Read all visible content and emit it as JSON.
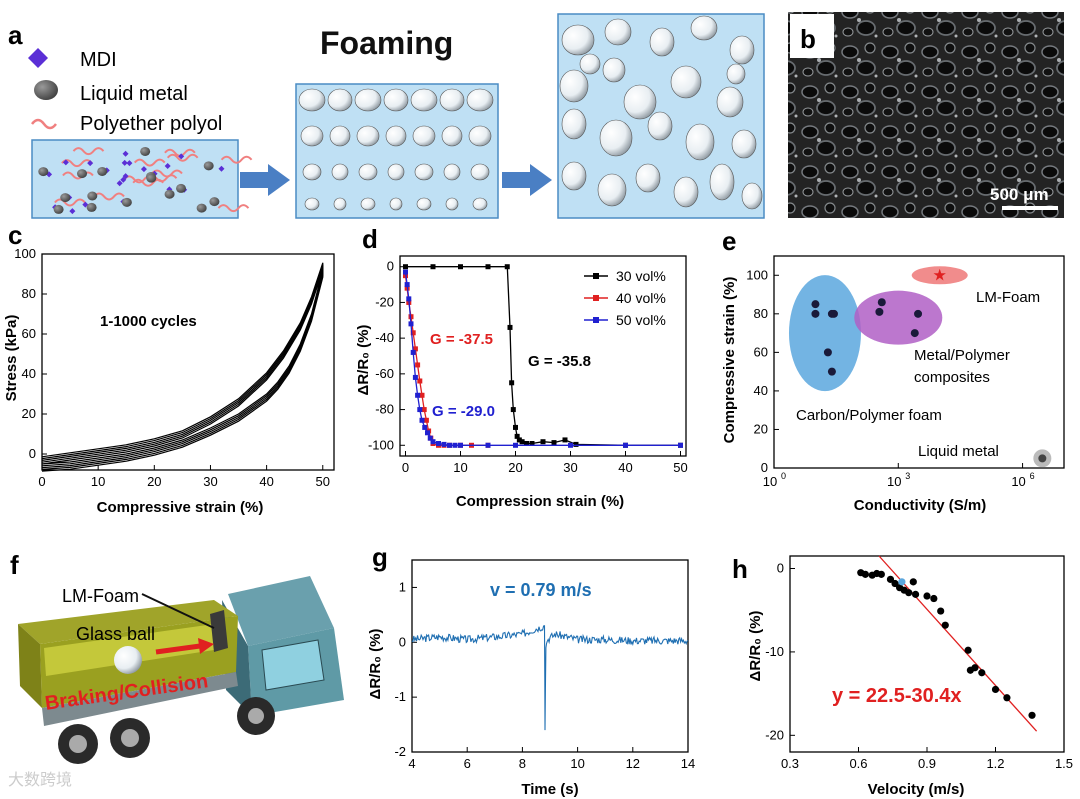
{
  "panel_letters": {
    "a": "a",
    "b": "b",
    "c": "c",
    "d": "d",
    "e": "e",
    "f": "f",
    "g": "g",
    "h": "h"
  },
  "panel_a": {
    "title": "Foaming",
    "legend": [
      {
        "label": "MDI",
        "icon": "diamond-icon",
        "color": "#5b2fd6"
      },
      {
        "label": "Liquid metal",
        "icon": "gray-dot-icon",
        "color": "#555555"
      },
      {
        "label": "Polyether polyol",
        "icon": "wave-icon",
        "color": "#f08080"
      }
    ]
  },
  "panel_b": {
    "scale_bar": "500 μm"
  },
  "panel_f": {
    "lm_foam": "LM-Foam",
    "glass_ball": "Glass ball",
    "event": "Braking/Collision"
  },
  "watermark": "大数跨境",
  "chart_data": [
    {
      "panel": "c",
      "type": "line",
      "xlabel": "Compressive strain (%)",
      "ylabel": "Stress (kPa)",
      "xlim": [
        0,
        52
      ],
      "ylim": [
        -8,
        100
      ],
      "xticks": [
        "0",
        "10",
        "20",
        "30",
        "40",
        "50"
      ],
      "yticks": [
        "0",
        "20",
        "40",
        "60",
        "80",
        "100"
      ],
      "annotation": "1-1000 cycles",
      "series": [
        {
          "x": [
            0,
            5,
            10,
            15,
            20,
            25,
            30,
            35,
            40,
            43,
            46,
            48,
            50,
            50,
            48,
            46,
            44,
            42,
            40,
            35,
            30,
            25,
            20,
            15,
            10,
            5,
            0
          ],
          "y": [
            -5,
            -3,
            -1,
            1,
            4,
            8,
            15,
            24,
            37,
            48,
            62,
            75,
            92,
            92,
            70,
            55,
            44,
            36,
            30,
            20,
            13,
            7,
            3,
            0,
            -2,
            -4,
            -5
          ]
        }
      ]
    },
    {
      "panel": "d",
      "type": "line",
      "xlabel": "Compression strain (%)",
      "ylabel": "ΔR/R₀ (%)",
      "xlim": [
        0,
        50
      ],
      "ylim": [
        -100,
        0
      ],
      "xticks": [
        "0",
        "10",
        "20",
        "30",
        "40",
        "50"
      ],
      "yticks": [
        "0",
        "-20",
        "-40",
        "-60",
        "-80",
        "-100"
      ],
      "series": [
        {
          "name": "30 vol%",
          "color": "#000000",
          "x": [
            0,
            5,
            10,
            15,
            18.5,
            19,
            19.3,
            19.6,
            20,
            20.3,
            20.7,
            21.2,
            22,
            23,
            25,
            27,
            29,
            31,
            40,
            50
          ],
          "y": [
            0,
            0,
            0,
            0,
            0,
            -34,
            -65,
            -80,
            -90,
            -95,
            -97,
            -98,
            -99,
            -99,
            -98,
            -98.5,
            -97,
            -99.5,
            -100,
            -100
          ]
        },
        {
          "name": "40 vol%",
          "color": "#e02020",
          "x": [
            0,
            0.3,
            0.6,
            1,
            1.4,
            1.8,
            2.2,
            2.6,
            3,
            3.4,
            3.8,
            4.2,
            4.6,
            5,
            6,
            7,
            8,
            10,
            12,
            15
          ],
          "y": [
            -5,
            -12,
            -20,
            -28,
            -37,
            -46,
            -55,
            -64,
            -72,
            -80,
            -86,
            -92,
            -96,
            -99,
            -100,
            -100,
            -100,
            -100,
            -100,
            -100
          ]
        },
        {
          "name": "50 vol%",
          "color": "#2020d0",
          "x": [
            0,
            0.3,
            0.6,
            1,
            1.4,
            1.8,
            2.2,
            2.6,
            3,
            3.5,
            4,
            4.5,
            5,
            6,
            7,
            8,
            9,
            10,
            15,
            20,
            30,
            40,
            50
          ],
          "y": [
            -3,
            -10,
            -18,
            -32,
            -48,
            -62,
            -72,
            -80,
            -86,
            -90,
            -93,
            -96,
            -98,
            -99,
            -99.5,
            -100,
            -100,
            -100,
            -100,
            -100,
            -100,
            -100,
            -100
          ]
        }
      ],
      "annotations": [
        {
          "text": "G = -37.5",
          "color": "#e02020"
        },
        {
          "text": "G = -35.8",
          "color": "#000000"
        },
        {
          "text": "G = -29.0",
          "color": "#2020d0"
        }
      ]
    },
    {
      "panel": "e",
      "type": "scatter",
      "xlabel": "Conductivity (S/m)",
      "ylabel": "Compressive strain (%)",
      "xscale": "log",
      "xlim": [
        1,
        10000000
      ],
      "ylim": [
        0,
        110
      ],
      "xticks": [
        "10^0",
        "10^3",
        "10^6"
      ],
      "yticks": [
        "0",
        "20",
        "40",
        "60",
        "80",
        "100"
      ],
      "groups": [
        {
          "name": "Carbon/Polymer foam",
          "color": "#5aa7de",
          "points": [
            [
              10,
              85
            ],
            [
              10,
              80
            ],
            [
              25,
              80
            ],
            [
              28,
              80
            ],
            [
              20,
              60
            ],
            [
              25,
              50
            ]
          ]
        },
        {
          "name": "Metal/Polymer composites",
          "color": "#b05fc5",
          "points": [
            [
              400,
              86
            ],
            [
              350,
              81
            ],
            [
              3000,
              80
            ],
            [
              2500,
              70
            ]
          ]
        },
        {
          "name": "LM-Foam",
          "color": "#f08080",
          "marker": "star",
          "points": [
            [
              10000,
              100
            ]
          ]
        },
        {
          "name": "Liquid metal",
          "color": "#888888",
          "points": [
            [
              3000000,
              5
            ]
          ]
        }
      ]
    },
    {
      "panel": "g",
      "type": "line",
      "xlabel": "Time (s)",
      "ylabel": "ΔR/R₀ (%)",
      "xlim": [
        4,
        14
      ],
      "ylim": [
        -2,
        1.5
      ],
      "xticks": [
        "4",
        "6",
        "8",
        "10",
        "12",
        "14"
      ],
      "yticks": [
        "-2",
        "-1",
        "0",
        "1"
      ],
      "annotation": "v = 0.79 m/s",
      "series": [
        {
          "name": "",
          "color": "#1f6fb2",
          "x": [
            4,
            5,
            6,
            7,
            8,
            8.5,
            8.8,
            8.82,
            8.85,
            8.9,
            9.2,
            10,
            11,
            12,
            13,
            14
          ],
          "y": [
            0.05,
            0.1,
            0.05,
            0.1,
            0.15,
            0.25,
            0.3,
            -1.6,
            -0.1,
            0.05,
            0.15,
            0.05,
            0.05,
            0.03,
            0.03,
            0.03
          ]
        }
      ]
    },
    {
      "panel": "h",
      "type": "scatter",
      "xlabel": "Velocity (m/s)",
      "ylabel": "ΔR/R₀ (%)",
      "xlim": [
        0.3,
        1.5
      ],
      "ylim": [
        -22,
        1.5
      ],
      "xticks": [
        "0.3",
        "0.6",
        "0.9",
        "1.2",
        "1.5"
      ],
      "yticks": [
        "0",
        "-10",
        "-20"
      ],
      "equation": "y = 22.5-30.4x",
      "fit": {
        "x": [
          0.69,
          1.38
        ],
        "y": [
          1.5,
          -19.5
        ],
        "color": "#e02020"
      },
      "points": [
        [
          0.61,
          -0.5
        ],
        [
          0.63,
          -0.7
        ],
        [
          0.66,
          -0.8
        ],
        [
          0.68,
          -0.6
        ],
        [
          0.7,
          -0.7
        ],
        [
          0.74,
          -1.3
        ],
        [
          0.76,
          -1.8
        ],
        [
          0.78,
          -2.3
        ],
        [
          0.8,
          -2.6
        ],
        [
          0.82,
          -2.9
        ],
        [
          0.84,
          -1.6
        ],
        [
          0.85,
          -3.1
        ],
        [
          0.9,
          -3.3
        ],
        [
          0.93,
          -3.6
        ],
        [
          0.96,
          -5.1
        ],
        [
          0.98,
          -6.8
        ],
        [
          1.08,
          -9.8
        ],
        [
          1.09,
          -12.2
        ],
        [
          1.11,
          -11.9
        ],
        [
          1.14,
          -12.5
        ],
        [
          1.2,
          -14.5
        ],
        [
          1.25,
          -15.5
        ],
        [
          1.36,
          -17.6
        ]
      ]
    }
  ]
}
